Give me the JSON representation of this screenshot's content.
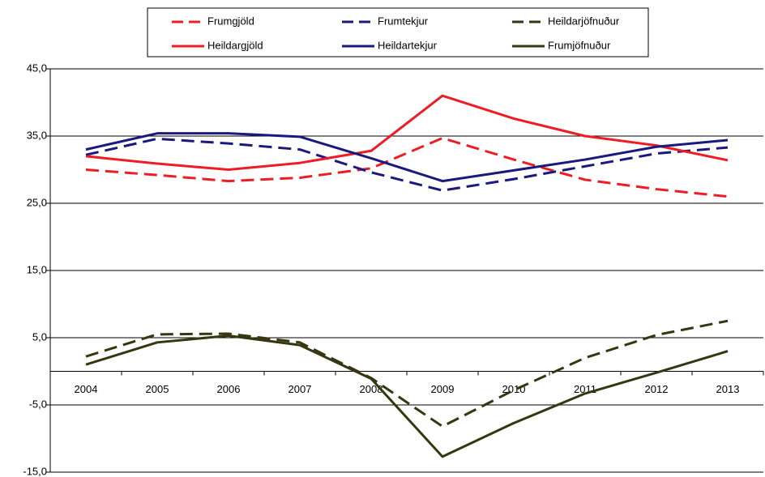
{
  "chart_data": {
    "type": "line",
    "categories": [
      "2004",
      "2005",
      "2006",
      "2007",
      "2008",
      "2009",
      "2010",
      "2011",
      "2012",
      "2013"
    ],
    "series": [
      {
        "name": "Frumgjöld",
        "color": "#ee1c25",
        "dash": true,
        "values": [
          30.0,
          29.2,
          28.3,
          28.8,
          30.2,
          34.7,
          31.5,
          28.5,
          27.1,
          26.0
        ]
      },
      {
        "name": "Frumtekjur",
        "color": "#1a1a7e",
        "dash": true,
        "values": [
          32.2,
          34.6,
          33.9,
          33.0,
          29.6,
          26.9,
          28.6,
          30.5,
          32.4,
          33.3
        ]
      },
      {
        "name": "Heildarjöfnuður",
        "color": "#363611",
        "dash": true,
        "values": [
          2.2,
          5.5,
          5.6,
          4.3,
          -1.0,
          -8.2,
          -2.8,
          2.0,
          5.4,
          7.5
        ]
      },
      {
        "name": "Heildargjöld",
        "color": "#ee1c25",
        "dash": false,
        "values": [
          32.0,
          30.9,
          30.0,
          31.0,
          32.8,
          41.0,
          37.6,
          35.0,
          33.6,
          31.4
        ]
      },
      {
        "name": "Heildartekjur",
        "color": "#1a1a7e",
        "dash": false,
        "values": [
          33.0,
          35.4,
          35.4,
          34.9,
          31.7,
          28.3,
          29.9,
          31.5,
          33.4,
          34.4
        ]
      },
      {
        "name": "Frumjöfnuður",
        "color": "#363611",
        "dash": false,
        "values": [
          1.0,
          4.3,
          5.3,
          3.9,
          -1.1,
          -12.7,
          -7.7,
          -3.3,
          -0.2,
          3.0
        ]
      }
    ],
    "ylim": [
      -15,
      45
    ],
    "yticks": [
      {
        "value": -15,
        "label": "-15,0"
      },
      {
        "value": -5,
        "label": "-5,0"
      },
      {
        "value": 5,
        "label": "5,0"
      },
      {
        "value": 15,
        "label": "15,0"
      },
      {
        "value": 25,
        "label": "25,0"
      },
      {
        "value": 35,
        "label": "35,0"
      },
      {
        "value": 45,
        "label": "45,0"
      }
    ],
    "grid": true,
    "legend": "top"
  }
}
